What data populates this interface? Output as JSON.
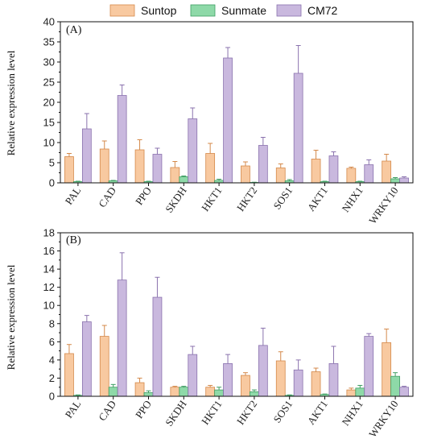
{
  "legend": {
    "items": [
      {
        "label": "Suntop",
        "color": "#F8C9A0",
        "stroke": "#D4894A"
      },
      {
        "label": "Sunmate",
        "color": "#8ED9A8",
        "stroke": "#3E9E62"
      },
      {
        "label": "CM72",
        "color": "#C9B8DE",
        "stroke": "#8A72AE"
      }
    ]
  },
  "chart_data": [
    {
      "type": "bar",
      "panel_label": "(A)",
      "ylabel": "Relative expression level",
      "ylim": [
        0,
        40
      ],
      "yticks": [
        "0",
        "5",
        "10",
        "15",
        "20",
        "25",
        "30",
        "35",
        "40"
      ],
      "categories": [
        "PAL",
        "CAD",
        "PPO",
        "SKDH",
        "HKT1",
        "HKT2",
        "SOS1",
        "AKT1",
        "NHX1",
        "WRKY10"
      ],
      "series": [
        {
          "name": "Suntop",
          "values": [
            6.5,
            8.4,
            8.2,
            3.8,
            7.3,
            4.2,
            3.7,
            5.9,
            3.6,
            5.4
          ],
          "errors": [
            0.8,
            2.0,
            2.5,
            1.5,
            2.5,
            1.0,
            1.0,
            2.2,
            0.3,
            1.7
          ]
        },
        {
          "name": "Sunmate",
          "values": [
            0.3,
            0.5,
            0.3,
            1.5,
            0.6,
            0.1,
            0.5,
            0.3,
            0.3,
            1.0
          ],
          "errors": [
            0.1,
            0.1,
            0.1,
            0.2,
            0.3,
            0.05,
            0.3,
            0.1,
            0.1,
            0.3
          ]
        },
        {
          "name": "CM72",
          "values": [
            13.4,
            21.7,
            7.1,
            15.9,
            31.0,
            9.3,
            27.2,
            6.7,
            4.5,
            1.2
          ],
          "errors": [
            3.8,
            2.6,
            1.5,
            2.7,
            2.6,
            2.0,
            6.9,
            1.0,
            1.2,
            0.3
          ]
        }
      ]
    },
    {
      "type": "bar",
      "panel_label": "(B)",
      "ylabel": "Relative expression level",
      "ylim": [
        0,
        18
      ],
      "yticks": [
        "0",
        "2",
        "4",
        "6",
        "8",
        "10",
        "12",
        "14",
        "16",
        "18"
      ],
      "categories": [
        "PAL",
        "CAD",
        "PPO",
        "SKDH",
        "HKT1",
        "HKT2",
        "SOS1",
        "AKT1",
        "NHX1",
        "WRKY10"
      ],
      "series": [
        {
          "name": "Suntop",
          "values": [
            4.7,
            6.6,
            1.5,
            1.0,
            1.0,
            2.3,
            3.9,
            2.7,
            0.7,
            5.9
          ],
          "errors": [
            1.0,
            1.2,
            0.5,
            0.1,
            0.2,
            0.3,
            1.0,
            0.4,
            0.2,
            1.5
          ]
        },
        {
          "name": "Sunmate",
          "values": [
            0.1,
            1.0,
            0.4,
            1.0,
            0.7,
            0.5,
            0.1,
            0.2,
            0.9,
            2.2
          ],
          "errors": [
            0.05,
            0.3,
            0.2,
            0.1,
            0.3,
            0.2,
            0.05,
            0.05,
            0.3,
            0.4
          ]
        },
        {
          "name": "CM72",
          "values": [
            8.2,
            12.8,
            10.9,
            4.6,
            3.6,
            5.6,
            2.9,
            3.6,
            6.6,
            1.0
          ],
          "errors": [
            0.7,
            3.0,
            2.2,
            0.9,
            1.0,
            1.9,
            1.1,
            1.9,
            0.3,
            0.1
          ]
        }
      ]
    }
  ]
}
